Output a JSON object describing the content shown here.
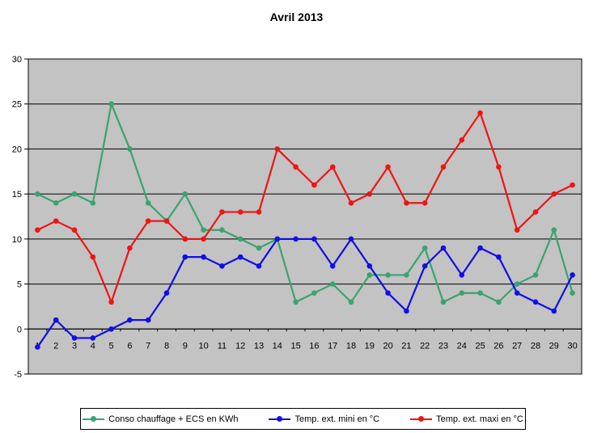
{
  "chart_data": {
    "type": "line",
    "title": "Avril 2013",
    "categories": [
      1,
      2,
      3,
      4,
      5,
      6,
      7,
      8,
      9,
      10,
      11,
      12,
      13,
      14,
      15,
      16,
      17,
      18,
      19,
      20,
      21,
      22,
      23,
      24,
      25,
      26,
      27,
      28,
      29,
      30
    ],
    "series": [
      {
        "name": "Conso chauffage + ECS en KWh",
        "color": "#3BA370",
        "values": [
          15,
          14,
          15,
          14,
          25,
          20,
          14,
          12,
          15,
          11,
          11,
          10,
          9,
          10,
          3,
          4,
          5,
          3,
          6,
          6,
          6,
          9,
          3,
          4,
          4,
          3,
          5,
          6,
          11,
          4
        ]
      },
      {
        "name": "Temp. ext. mini en °C",
        "color": "#0F0FE8",
        "values": [
          -2,
          1,
          -1,
          -1,
          0,
          1,
          1,
          4,
          8,
          8,
          7,
          8,
          7,
          10,
          10,
          10,
          7,
          10,
          7,
          4,
          2,
          7,
          9,
          6,
          9,
          8,
          4,
          3,
          2,
          6
        ]
      },
      {
        "name": "Temp. ext. maxi en °C",
        "color": "#F01414",
        "values": [
          11,
          12,
          11,
          8,
          3,
          9,
          12,
          12,
          10,
          10,
          13,
          13,
          13,
          20,
          18,
          16,
          18,
          14,
          15,
          18,
          14,
          14,
          18,
          21,
          24,
          18,
          11,
          13,
          15,
          16
        ]
      }
    ],
    "ylim": [
      -5,
      30
    ],
    "ytick_interval": 5,
    "grid": true,
    "legend_position": "bottom",
    "colors": {
      "plot_bg": "#C3C3C3",
      "grid": "#000000",
      "axis": "#000000",
      "text": "#000000"
    }
  }
}
